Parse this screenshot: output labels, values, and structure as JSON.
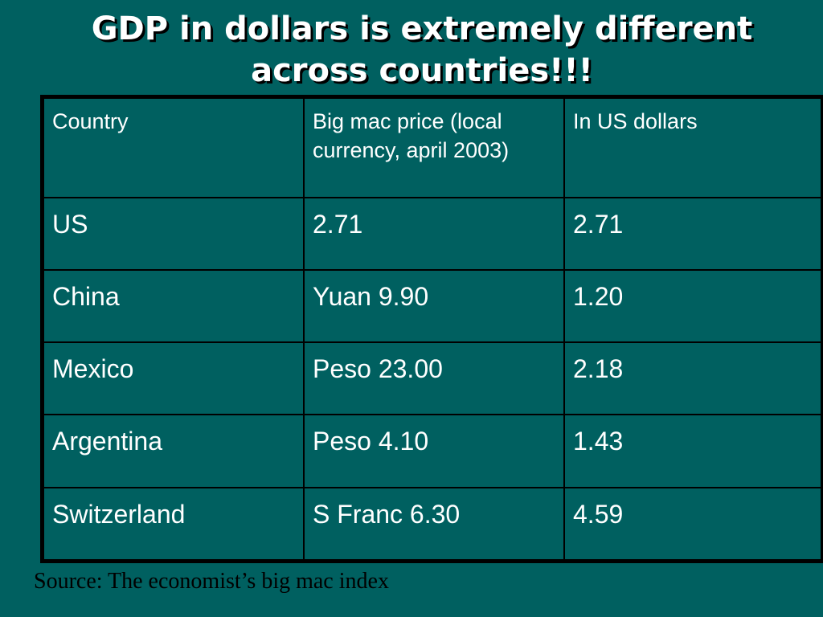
{
  "slide": {
    "title_line1": "GDP in dollars is extremely different",
    "title_line2": "across countries!!!"
  },
  "table": {
    "headers": [
      "Country",
      "Big mac price (local currency, april 2003)",
      "In US dollars"
    ],
    "rows": [
      {
        "country": "US",
        "local_price": "2.71",
        "usd": "2.71"
      },
      {
        "country": "China",
        "local_price": "Yuan 9.90",
        "usd": "1.20"
      },
      {
        "country": "Mexico",
        "local_price": "Peso 23.00",
        "usd": "2.18"
      },
      {
        "country": "Argentina",
        "local_price": "Peso 4.10",
        "usd": "1.43"
      },
      {
        "country": "Switzerland",
        "local_price": "S Franc 6.30",
        "usd": "4.59"
      }
    ]
  },
  "source": "Source: The economist’s big mac index",
  "colors": {
    "background": "#006060",
    "text": "#ffffff",
    "border": "#000000",
    "source_text": "#000000"
  }
}
